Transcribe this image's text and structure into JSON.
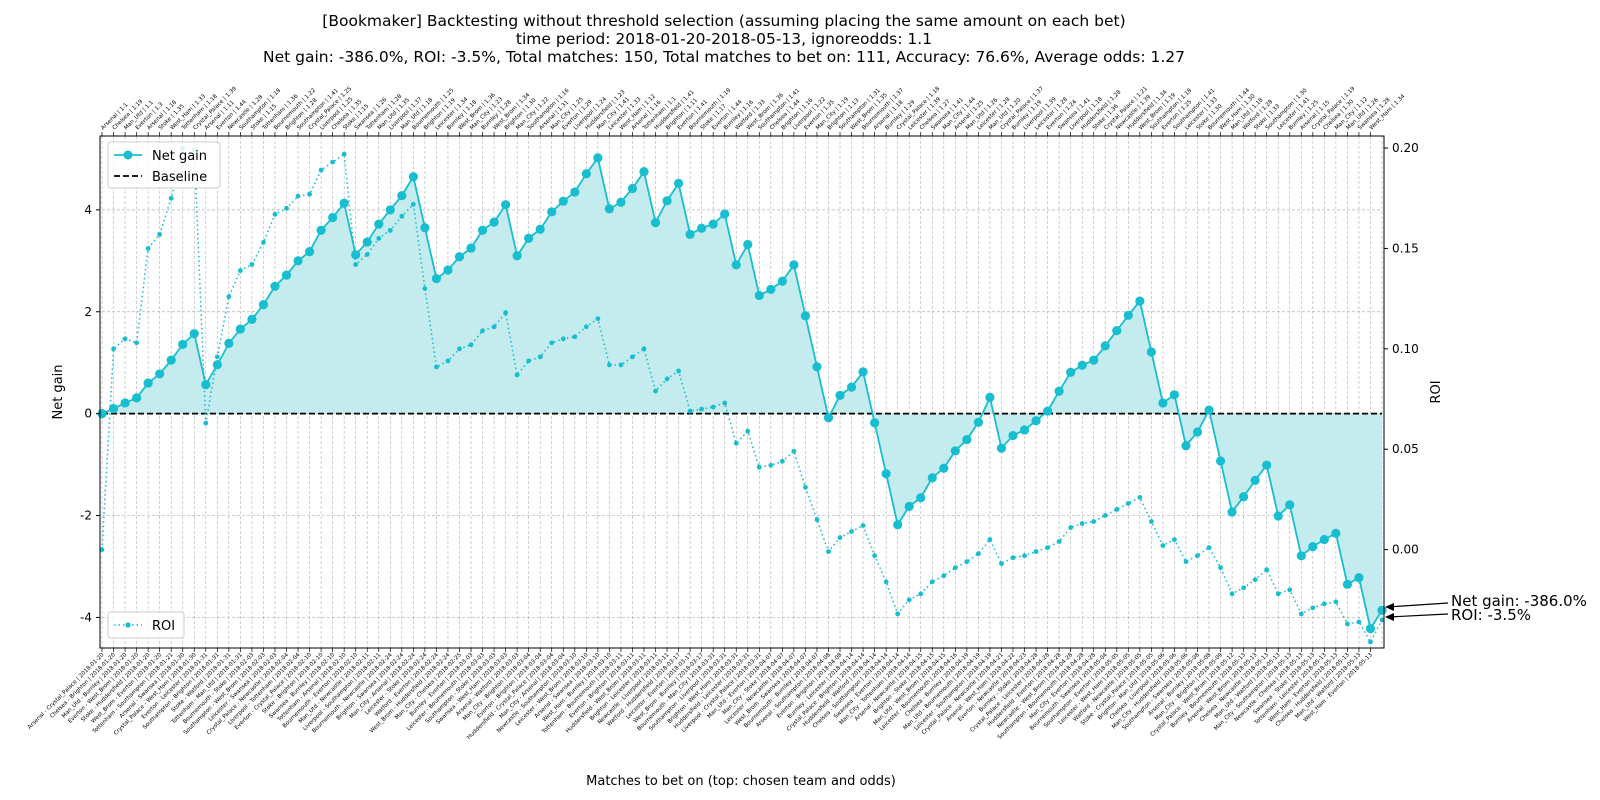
{
  "chart_data": {
    "type": "line",
    "title_lines": [
      "[Bookmaker] Backtesting without threshold selection (assuming placing the same amount on each bet)",
      "time period: 2018-01-20-2018-05-13, ignoreodds: 1.1",
      "Net gain: -386.0%, ROI: -3.5%, Total matches: 150, Total matches to bet on: 111, Accuracy: 76.6%, Average odds: 1.27"
    ],
    "xlabel": "Matches to bet on (top: chosen team and odds)",
    "ylabel": "Net gain",
    "ylabel_right": "ROI",
    "ylim": [
      -4.6,
      5.45
    ],
    "ylim_right": [
      -0.049,
      0.206
    ],
    "yticks": [
      -4,
      -2,
      0,
      2,
      4
    ],
    "yticks_right": [
      0.0,
      0.05,
      0.1,
      0.15,
      0.2
    ],
    "grid": true,
    "legend_top": {
      "position": "upper left",
      "entries": [
        "Net gain",
        "Baseline"
      ]
    },
    "legend_bottom": {
      "position": "lower left",
      "entries": [
        "ROI"
      ]
    },
    "colors": {
      "series": "#17becf",
      "fill": "#c4ebee",
      "baseline": "#000000",
      "grid": "#b0b0b0"
    },
    "annotations": [
      "Net gain: -386.0%",
      "ROI: -3.5%"
    ],
    "series": [
      {
        "name": "Net gain",
        "style": "solid-marker",
        "values": [
          0.0,
          0.1,
          0.21,
          0.31,
          0.6,
          0.78,
          1.05,
          1.36,
          1.57,
          0.57,
          0.96,
          1.38,
          1.66,
          1.85,
          2.14,
          2.5,
          2.72,
          3.0,
          3.18,
          3.6,
          3.85,
          4.13,
          3.12,
          3.37,
          3.72,
          4.0,
          4.28,
          4.65,
          3.65,
          2.65,
          2.82,
          3.08,
          3.25,
          3.6,
          3.76,
          4.1,
          3.1,
          3.44,
          3.62,
          3.96,
          4.17,
          4.35,
          4.71,
          5.02,
          4.02,
          4.15,
          4.42,
          4.75,
          3.75,
          4.18,
          4.52,
          3.52,
          3.64,
          3.72,
          3.92,
          2.92,
          3.32,
          2.32,
          2.44,
          2.6,
          2.92,
          1.92,
          0.92,
          -0.08,
          0.36,
          0.52,
          0.82,
          -0.18,
          -1.18,
          -2.18,
          -1.82,
          -1.65,
          -1.26,
          -1.07,
          -0.73,
          -0.51,
          -0.17,
          0.32,
          -0.68,
          -0.43,
          -0.32,
          -0.14,
          0.05,
          0.44,
          0.81,
          0.95,
          1.05,
          1.33,
          1.63,
          1.93,
          2.21,
          1.21,
          0.21,
          0.37,
          -0.63,
          -0.36,
          0.07,
          -0.93,
          -1.93,
          -1.63,
          -1.31,
          -1.01,
          -2.01,
          -1.79,
          -2.79,
          -2.61,
          -2.47,
          -2.35,
          -3.35,
          -3.22,
          -4.22,
          -3.86
        ]
      },
      {
        "name": "ROI",
        "style": "dotted-small-marker",
        "values": [
          0.0,
          0.1,
          0.105,
          0.103,
          0.15,
          0.157,
          0.175,
          0.2,
          0.199,
          0.063,
          0.096,
          0.126,
          0.139,
          0.142,
          0.153,
          0.167,
          0.17,
          0.176,
          0.177,
          0.189,
          0.193,
          0.197,
          0.142,
          0.147,
          0.155,
          0.159,
          0.166,
          0.172,
          0.13,
          0.091,
          0.094,
          0.1,
          0.102,
          0.109,
          0.111,
          0.118,
          0.087,
          0.094,
          0.096,
          0.103,
          0.105,
          0.106,
          0.111,
          0.115,
          0.092,
          0.092,
          0.096,
          0.1,
          0.079,
          0.085,
          0.089,
          0.069,
          0.07,
          0.071,
          0.073,
          0.053,
          0.059,
          0.041,
          0.042,
          0.044,
          0.049,
          0.031,
          0.015,
          -0.001,
          0.006,
          0.009,
          0.012,
          -0.003,
          -0.016,
          -0.032,
          -0.025,
          -0.022,
          -0.016,
          -0.013,
          -0.009,
          -0.006,
          -0.002,
          0.005,
          -0.007,
          -0.004,
          -0.003,
          -0.001,
          0.001,
          0.004,
          0.011,
          0.013,
          0.014,
          0.017,
          0.02,
          0.023,
          0.026,
          0.014,
          0.002,
          0.005,
          -0.006,
          -0.003,
          0.001,
          -0.009,
          -0.022,
          -0.019,
          -0.015,
          -0.01,
          -0.022,
          -0.02,
          -0.032,
          -0.029,
          -0.027,
          -0.026,
          -0.037,
          -0.036,
          -0.046,
          -0.035
        ]
      }
    ],
    "categories_top": [
      "Arsenal | 1.1",
      "Chelsea | 1.19",
      "Man_Utd | 1.1",
      "Everton | 1.3",
      "Arsenal | 1.18",
      "Stoke | 1.35",
      "West_Ham | 1.33",
      "Tottenham | 1.18",
      "Crystal_Palace | 1.39",
      "Arsenal | 1.11",
      "Everton | 1.44",
      "Newcastle | 1.28",
      "Southampton | 1.18",
      "Stoke | 1.15",
      "Tottenham | 1.36",
      "Bournemouth | 1.22",
      "Brighton | 1.28",
      "Southampton | 1.41",
      "Crystal_Palace | 1.25",
      "Liverpool | 1.25",
      "Chelsea | 1.35",
      "Stoke | 1.15",
      "Swansea | 1.26",
      "Tottenham | 1.28",
      "Man_Utd | 1.35",
      "Liverpool | 1.37",
      "Man_Utd | 1.18",
      "Bournemouth | 1.25",
      "Brighton | 1.19",
      "Leicester | 1.34",
      "Burnley | 1.18",
      "West_Brom | 1.36",
      "Man_City | 1.23",
      "Burnley | 1.28",
      "West_Brom | 1.34",
      "Brighton | 1.30",
      "Man_City | 1.22",
      "Southampton | 1.16",
      "Arsenal | 1.31",
      "Man_City | 1.25",
      "Everton | 1.29",
      "Liverpool | 1.24",
      "Huddersfield | 1.23",
      "Man_City | 1.41",
      "Leicester | 1.33",
      "West_Ham | 1.12",
      "Arsenal | 1.16",
      "Tottenham | 1.1",
      "Huddersfield | 1.41",
      "Brighton | 1.11",
      "Everton | 1.41",
      "Bournemouth | 1.18",
      "Stoke | 1.17",
      "Everton | 1.44",
      "Burnley | 1.16",
      "Watford | 1.33",
      "West_Brom | 1.36",
      "Southampton | 1.41",
      "Chelsea | 1.44",
      "Brighton | 1.16",
      "Liverpool | 1.22",
      "Everton | 1.35",
      "Man_City | 1.19",
      "Brighton | 1.13",
      "Southampton | 1.31",
      "West_Brom | 1.35",
      "Bournemouth | 1.37",
      "Arsenal | 1.18",
      "Burnley | 1.29",
      "Crystal_Palace | 1.18",
      "Leicester | 1.39",
      "Chelsea | 1.27",
      "Swansea | 1.41",
      "Man_City | 1.44",
      "Arsenal | 1.25",
      "Man_Utd | 1.26",
      "Leicester | 1.28",
      "Man_Utd | 1.20",
      "Crystal_Palace | 1.37",
      "Burnley | 1.19",
      "Liverpool | 1.39",
      "Leicester | 1.28",
      "Everton | 1.24",
      "Swansea | 1.41",
      "Liverpool | 1.18",
      "Huddersfield | 1.28",
      "Stoke | 1.36",
      "Crystal_Palace | 1.21",
      "Newcastle | 1.39",
      "Huddersfield | 1.34",
      "West_Brom | 1.19",
      "Southampton | 1.18",
      "Everton | 1.25",
      "Southampton | 1.41",
      "Leicester | 1.33",
      "Stoke | 1.30",
      "Bournemouth | 1.44",
      "West_Ham | 1.30",
      "Man_Utd | 1.18",
      "Watford | 1.28",
      "Stoke | 1.33",
      "Southampton | 1.30",
      "Leicester | 1.41",
      "Burnley | 1.25",
      "Arsenal | 1.15",
      "Crystal_Palace | 1.19",
      "Chelsea | 1.30",
      "Man_City | 1.12",
      "Man_Utd | 1.26",
      "Swansea | 1.28",
      "West_Ham | 1.34"
    ],
    "categories_bottom": [
      "Arsenal - Crystal_Palace | 2018-01-20",
      "Chelsea - Brighton | 2018-01-20",
      "Man_Utd - Burnley | 2018-01-20",
      "Everton - West_Brom | 2018-01-20",
      "Stoke - Huddersfield | 2018-01-20",
      "West_Brom - Everton | 2018-01-20",
      "Tottenham - Southampton | 2018-01-21",
      "Arsenal - Swansea | 2018-01-30",
      "Crystal_Palace - West_Ham | 2018-01-30",
      "Everton - Leicester | 2018-01-31",
      "Southampton - Brighton | 2018-01-31",
      "Stoke - Watford | 2018-01-31",
      "Tottenham - Man_Utd | 2018-01-31",
      "Bournemouth - Stoke | 2018-02-03",
      "Southampton - West_Brom | 2018-02-03",
      "Leicester - Swansea | 2018-02-03",
      "Crystal_Palace - Newcastle | 2018-02-04",
      "Liverpool - Tottenham | 2018-02-04",
      "Everton - Crystal_Palace | 2018-02-10",
      "Stoke - Brighton | 2018-02-10",
      "Swansea - Burnley | 2018-02-10",
      "Tottenham - Arsenal | 2018-02-10",
      "Bournemouth - Everton | 2018-02-10",
      "Man_Utd - Newcastle | 2018-02-11",
      "Liverpool - Southampton | 2018-02-11",
      "Bournemouth - Newcastle | 2018-02-24",
      "Brighton - Swansea | 2018-02-24",
      "Man_City - Arsenal | 2018-02-24",
      "Leicester - Stoke | 2018-02-24",
      "Watford - Everton | 2018-02-24",
      "West_Brom - Huddersfield | 2018-02-24",
      "Man_City - Chelsea | 2018-02-25",
      "Burnley - Everton | 2018-03-03",
      "Leicester - Bournemouth | 2018-03-03",
      "Southampton - Stoke | 2018-03-03",
      "Swansea - West_Ham | 2018-03-03",
      "Arsenal - Watford | 2018-03-03",
      "Man_City - Brighton | 2018-03-04",
      "Everton - Brighton | 2018-03-04",
      "Huddersfield - Crystal_Palace | 2018-03-04",
      "Man_City - Arsenal | 2018-03-04",
      "Newcastle - Southampton | 2018-03-10",
      "Leicester - West_Brom | 2018-03-10",
      "Arsenal - Swansea | 2018-03-10",
      "West_Ham - Burnley | 2018-03-10",
      "Tottenham - Bournemouth | 2018-03-11",
      "Everton - Brighton | 2018-03-11",
      "Huddersfield - West_Brom | 2018-03-11",
      "Brighton - Leicester | 2018-03-11",
      "Newcastle - Liverpool | 2018-03-11",
      "Watford - Huddersfield | 2018-03-17",
      "Leicester - Everton | 2018-03-17",
      "West_Brom - Burnley | 2018-03-17",
      "Bournemouth - Man_City | 2018-03-31",
      "Southampton - Liverpool | 2018-03-31",
      "Brighton - West_Ham | 2018-03-31",
      "Huddersfield - Leicester | 2018-03-31",
      "Liverpool - Crystal_Palace | 2018-03-31",
      "Man_Utd - Everton | 2018-04-07",
      "Man_City - Stoke | 2018-04-07",
      "Leicester - Newcastle | 2018-04-07",
      "West_Brom - Swansea | 2018-04-07",
      "Bournemouth - Burnley | 2018-04-07",
      "Arsenal - Southampton | 2018-04-08",
      "Everton - Brighton | 2018-04-08",
      "Burnley - Leicester | 2018-04-14",
      "Crystal_Palace - Brighton | 2018-04-14",
      "Huddersfield - Watford | 2018-04-14",
      "Chelsea - Southampton | 2018-04-14",
      "Swansea - Everton | 2018-04-14",
      "Man_City - Tottenham | 2018-04-14",
      "Arsenal - Newcastle | 2018-04-15",
      "Brighton - Stoke | 2018-04-15",
      "Man_Utd - West_Brom | 2018-04-15",
      "Leicester - Bournemouth | 2018-04-16",
      "Chelsea - Burnley | 2018-04-19",
      "Man_Utd - Bournemouth | 2018-04-19",
      "Leicester - Southampton | 2018-04-19",
      "Crystal_Palace - Newcastle | 2018-04-21",
      "Arsenal - West_Ham | 2018-04-22",
      "Everton - Newcastle | 2018-04-23",
      "Burnley - Stoke | 2018-04-28",
      "Crystal_Palace - Leicester | 2018-04-28",
      "Huddersfield - Everton | 2018-04-28",
      "Newcastle - West_Brom | 2018-04-28",
      "Southampton - Bournemouth | 2018-04-28",
      "Man_City - Everton | 2018-04-28",
      "Bournemouth - Swansea | 2018-05-04",
      "Southampton - Everton | 2018-05-05",
      "Leicester - West_Ham | 2018-05-05",
      "Watford - Newcastle | 2018-05-05",
      "Stoke - Crystal_Palace | 2018-05-05",
      "Brighton - Man_Utd | 2018-05-06",
      "Chelsea - Liverpool | 2018-05-06",
      "Man_City - Huddersfield | 2018-05-06",
      "Southampton - Swansea | 2018-05-08",
      "Arsenal - Burnley | 2018-05-08",
      "Man_City - Brighton | 2018-05-09",
      "Crystal_Palace - West_Brom | 2018-05-12",
      "Burnley - Bournemouth | 2018-05-13",
      "Arsenal - West_Brom | 2018-05-13",
      "Chelsea - Newcastle | 2018-05-13",
      "Man_Utd - Watford | 2018-05-13",
      "Man_City - Southampton | 2018-05-13",
      "Newcastle - Chelsea | 2018-05-13",
      "Swansea - Stoke | 2018-05-13",
      "Tottenham - Leicester | 2018-05-13",
      "West_Ham - Everton | 2018-05-13",
      "Chelsea - Huddersfield | 2018-05-13",
      "Man_Utd - Watford | 2018-05-13",
      "West_Ham - Everton | 2018-05-13"
    ]
  }
}
